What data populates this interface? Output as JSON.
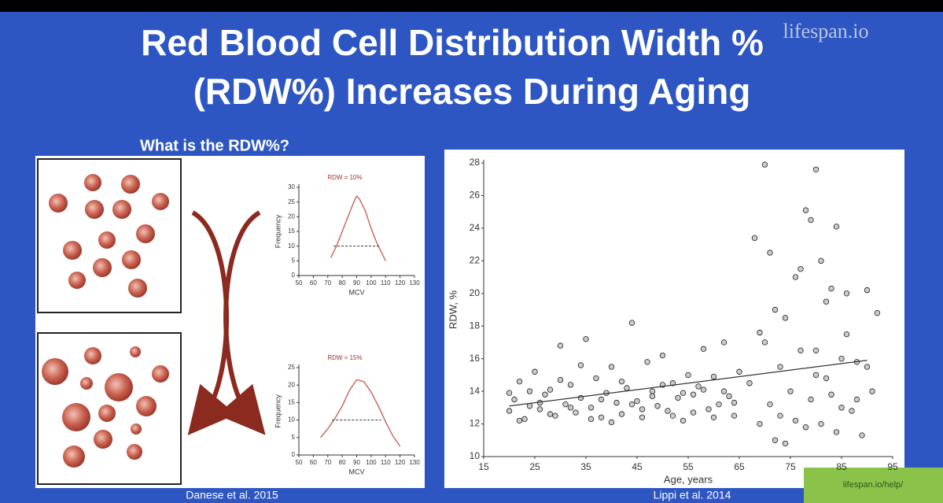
{
  "slide": {
    "title": [
      "Red Blood Cell Distribution Width %",
      "(RDW%) Increases During Aging"
    ],
    "subtitle": "What is the RDW%?",
    "captions": [
      "Danese et al. 2015",
      "Lippi et al. 2014"
    ],
    "watermark": "lifespan.io",
    "help_link": "lifespan.io/help/"
  },
  "chart_data": [
    {
      "type": "line",
      "title": "RDW = 10%",
      "title_color": "#a0302a",
      "x_label": "MCV",
      "y_label": "Frequency",
      "xlim": [
        50,
        130
      ],
      "xticks": [
        50,
        60,
        70,
        80,
        90,
        100,
        110,
        120,
        130
      ],
      "ylim": [
        0,
        30
      ],
      "yticks": [
        0,
        5,
        10,
        15,
        20,
        25,
        30
      ],
      "series": [
        {
          "color": "#c8564a",
          "dash": false,
          "x": [
            72,
            76,
            80,
            84,
            88,
            90,
            92,
            96,
            100,
            104,
            108,
            110
          ],
          "values": [
            6,
            10,
            15,
            20,
            25,
            27,
            26,
            22,
            16,
            11,
            7,
            5
          ]
        },
        {
          "color": "#333333",
          "dash": true,
          "x": [
            74,
            106
          ],
          "values": [
            10,
            10
          ]
        }
      ]
    },
    {
      "type": "line",
      "title": "RDW = 15%",
      "title_color": "#a0302a",
      "x_label": "MCV",
      "y_label": "Frequency",
      "xlim": [
        50,
        130
      ],
      "xticks": [
        50,
        60,
        70,
        80,
        90,
        100,
        110,
        120,
        130
      ],
      "ylim": [
        0,
        25
      ],
      "yticks": [
        0,
        5,
        10,
        15,
        20,
        25
      ],
      "series": [
        {
          "color": "#c8564a",
          "dash": false,
          "x": [
            65,
            70,
            75,
            80,
            85,
            90,
            95,
            100,
            105,
            110,
            115,
            120
          ],
          "values": [
            5,
            7.5,
            10.5,
            14,
            18.5,
            21.5,
            21,
            18,
            14,
            9.5,
            5.5,
            2.5
          ]
        },
        {
          "color": "#333333",
          "dash": true,
          "x": [
            73,
            107
          ],
          "values": [
            10,
            10
          ]
        }
      ]
    },
    {
      "type": "scatter",
      "x_label": "Age, years",
      "y_label": "RDW, %",
      "color": "#999999",
      "xlim": [
        15,
        95
      ],
      "xticks": [
        15,
        25,
        35,
        45,
        55,
        65,
        75,
        85,
        95
      ],
      "ylim": [
        10,
        28
      ],
      "yticks": [
        10,
        12,
        14,
        16,
        18,
        20,
        22,
        24,
        26,
        28
      ],
      "x": [
        20,
        21,
        22,
        23,
        24,
        25,
        26,
        27,
        28,
        29,
        30,
        31,
        32,
        33,
        34,
        35,
        36,
        37,
        38,
        39,
        40,
        41,
        42,
        43,
        44,
        45,
        46,
        47,
        48,
        49,
        50,
        51,
        52,
        53,
        54,
        55,
        56,
        57,
        58,
        59,
        60,
        61,
        62,
        63,
        64,
        65,
        20,
        22,
        24,
        26,
        28,
        30,
        32,
        34,
        36,
        38,
        40,
        42,
        44,
        46,
        48,
        50,
        52,
        54,
        56,
        58,
        60,
        62,
        64,
        67,
        68,
        69,
        70,
        70,
        71,
        71,
        72,
        72,
        73,
        74,
        74,
        75,
        76,
        76,
        77,
        78,
        78,
        79,
        79,
        80,
        80,
        81,
        81,
        82,
        82,
        83,
        84,
        84,
        85,
        85,
        86,
        87,
        88,
        89,
        90,
        91,
        92,
        69,
        73,
        77,
        80,
        83,
        86,
        88,
        90
      ],
      "values": [
        12.8,
        13.5,
        14.6,
        12.3,
        13.1,
        15.2,
        12.9,
        13.8,
        14.1,
        12.5,
        16.8,
        13.2,
        14.4,
        12.7,
        13.6,
        17.2,
        13.0,
        14.8,
        12.4,
        13.9,
        15.5,
        13.3,
        12.6,
        14.2,
        18.2,
        13.4,
        12.9,
        15.8,
        14.0,
        13.1,
        16.2,
        12.8,
        14.5,
        13.6,
        12.2,
        15.0,
        13.8,
        14.3,
        16.6,
        12.9,
        14.9,
        13.2,
        17.0,
        13.7,
        12.5,
        15.2,
        13.9,
        12.2,
        14.0,
        13.3,
        12.6,
        14.7,
        13.0,
        15.6,
        12.3,
        13.5,
        12.1,
        14.6,
        13.2,
        12.4,
        13.7,
        14.4,
        12.5,
        13.9,
        12.7,
        14.1,
        12.4,
        14.0,
        13.3,
        14.5,
        23.4,
        12.0,
        27.9,
        17.0,
        22.5,
        13.2,
        19.0,
        11.0,
        15.5,
        10.8,
        18.5,
        14.0,
        21.0,
        12.2,
        16.5,
        25.1,
        11.8,
        24.5,
        13.5,
        27.6,
        15.0,
        22.0,
        12.0,
        19.5,
        14.8,
        20.3,
        11.5,
        24.1,
        16.0,
        13.0,
        20.0,
        12.8,
        15.8,
        11.3,
        20.2,
        14.0,
        18.8,
        17.6,
        12.5,
        21.5,
        16.5,
        13.8,
        17.5,
        13.5,
        15.5
      ],
      "trend_x": [
        20,
        90
      ],
      "trend_values": [
        13.1,
        15.9
      ],
      "trend_color": "#333333"
    }
  ]
}
